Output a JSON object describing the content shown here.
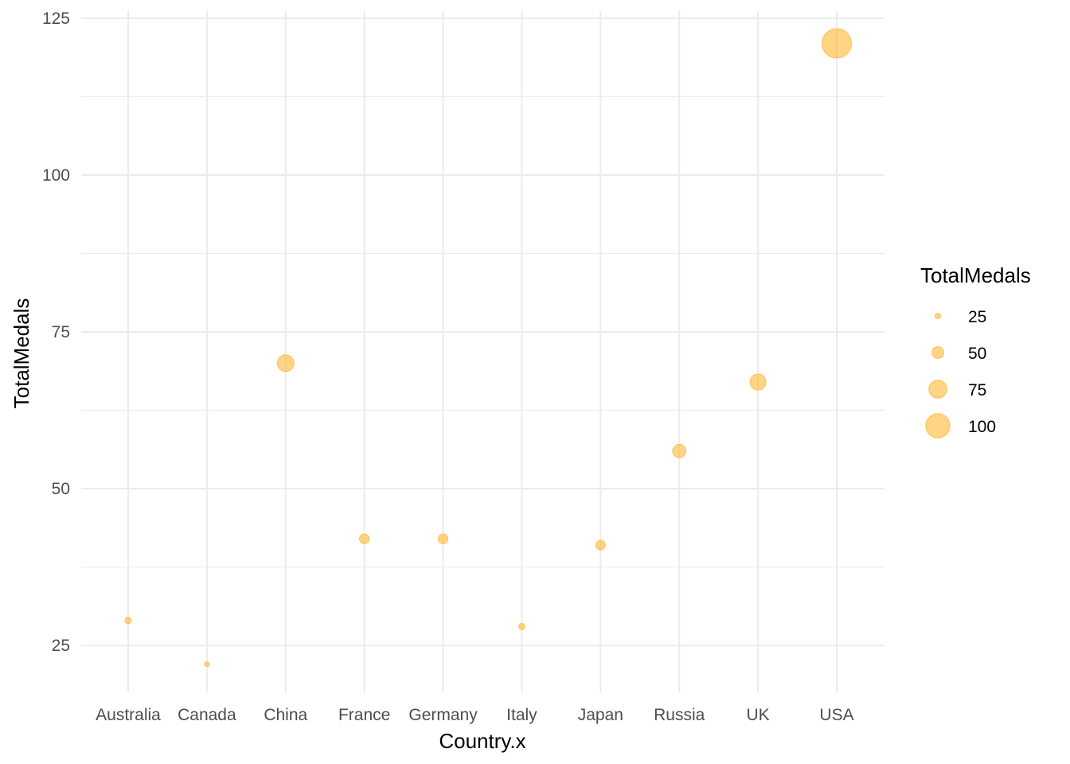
{
  "chart_data": {
    "type": "scatter",
    "xlabel": "Country.x",
    "ylabel": "TotalMedals",
    "categories": [
      "Australia",
      "Canada",
      "China",
      "France",
      "Germany",
      "Italy",
      "Japan",
      "Russia",
      "UK",
      "USA"
    ],
    "values": [
      29,
      22,
      70,
      42,
      42,
      28,
      41,
      56,
      67,
      121
    ],
    "size_variable": "TotalMedals",
    "ylim": [
      17.5,
      126
    ],
    "yticks": [
      25,
      50,
      75,
      100,
      125
    ],
    "grid": true,
    "point_color": "#FFB733",
    "point_alpha": 0.6,
    "legend": {
      "title": "TotalMedals",
      "position": "right",
      "entries": [
        {
          "label": "25",
          "value": 25
        },
        {
          "label": "50",
          "value": 50
        },
        {
          "label": "75",
          "value": 75
        },
        {
          "label": "100",
          "value": 100
        }
      ]
    }
  }
}
